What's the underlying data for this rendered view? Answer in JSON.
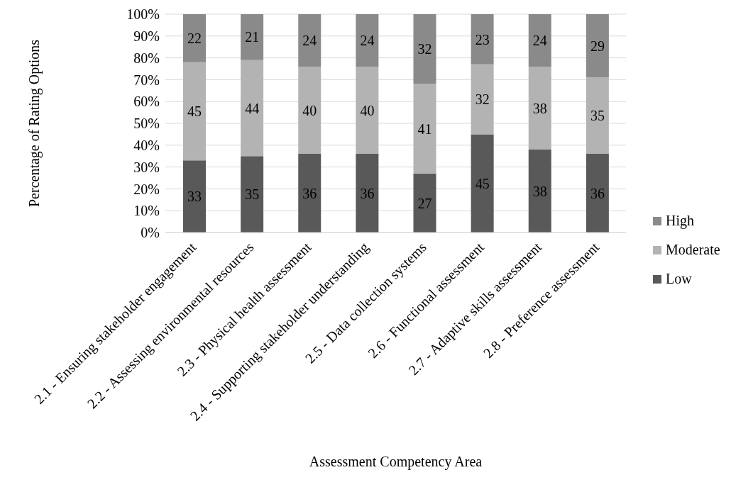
{
  "chart_data": {
    "type": "bar",
    "stacked": true,
    "xlabel": "Assessment Competency Area",
    "ylabel": "Percentage of Rating Options",
    "categories": [
      "2.1 - Ensuring stakeholder engagement",
      "2.2 - Assessing environmental resources",
      "2.3 - Physical health assessment",
      "2.4 - Supporting stakeholder understanding",
      "2.5 - Data collection systems",
      "2.6 - Functional assessment",
      "2.7 - Adaptive skills assessment",
      "2.8 - Preference assessment"
    ],
    "series": [
      {
        "name": "Low",
        "color": "#595959",
        "values": [
          33,
          35,
          36,
          36,
          27,
          45,
          38,
          36
        ]
      },
      {
        "name": "Moderate",
        "color": "#b3b3b3",
        "values": [
          45,
          44,
          40,
          40,
          41,
          32,
          38,
          35
        ]
      },
      {
        "name": "High",
        "color": "#8a8a8a",
        "values": [
          22,
          21,
          24,
          24,
          32,
          23,
          24,
          29
        ]
      }
    ],
    "ylim": [
      0,
      100
    ],
    "yticks": [
      {
        "value": 0,
        "label": "0%"
      },
      {
        "value": 10,
        "label": "10%"
      },
      {
        "value": 20,
        "label": "20%"
      },
      {
        "value": 30,
        "label": "30%"
      },
      {
        "value": 40,
        "label": "40%"
      },
      {
        "value": 50,
        "label": "50%"
      },
      {
        "value": 60,
        "label": "60%"
      },
      {
        "value": 70,
        "label": "70%"
      },
      {
        "value": 80,
        "label": "80%"
      },
      {
        "value": 90,
        "label": "90%"
      },
      {
        "value": 100,
        "label": "100%"
      }
    ],
    "grid": "y",
    "legend": "right",
    "data_labels": true
  }
}
